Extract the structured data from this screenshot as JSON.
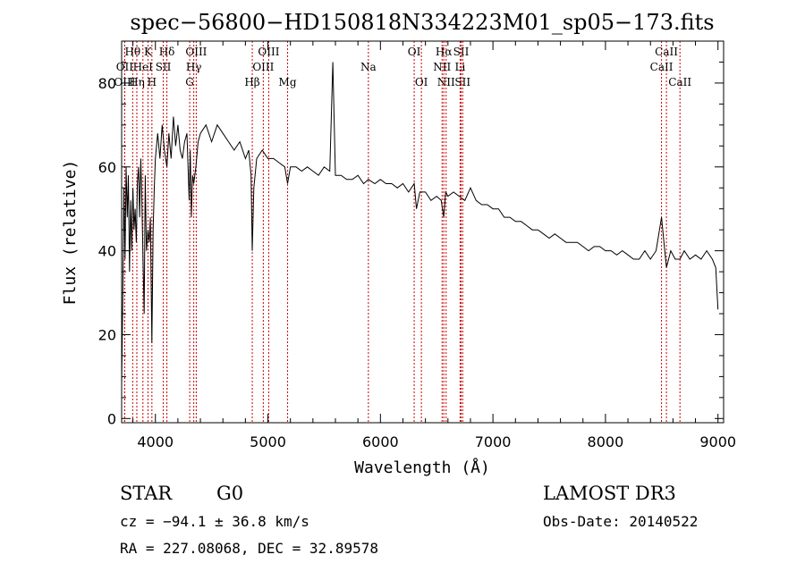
{
  "chart_data": {
    "type": "line",
    "title": "spec−56800−HD150818N334223M01_sp05−173.fits",
    "xlabel": "Wavelength (Å)",
    "ylabel": "Flux (relative)",
    "xlim": [
      3700,
      9050
    ],
    "ylim": [
      -1,
      90
    ],
    "xticks": [
      4000,
      5000,
      6000,
      7000,
      8000,
      9000
    ],
    "xtick_labels": [
      "4000",
      "5000",
      "6000",
      "7000",
      "8000",
      "9000"
    ],
    "yticks": [
      0,
      20,
      40,
      60,
      80
    ],
    "ytick_labels": [
      "0",
      "20",
      "40",
      "60",
      "80"
    ],
    "line_color": "#000000",
    "marker_color": "#cc0000",
    "spectral_lines": [
      {
        "label": "Hθ",
        "wavelength": 3798,
        "row": 1
      },
      {
        "label": "OII",
        "wavelength": 3727,
        "row": 2
      },
      {
        "label": "OIII",
        "wavelength": 3727,
        "row": 3
      },
      {
        "label": "Hη",
        "wavelength": 3835,
        "row": 3
      },
      {
        "label": "HeI",
        "wavelength": 3889,
        "row": 2
      },
      {
        "label": "K",
        "wavelength": 3934,
        "row": 1
      },
      {
        "label": "SII",
        "wavelength": 4070,
        "row": 2
      },
      {
        "label": "H",
        "wavelength": 3969,
        "row": 3
      },
      {
        "label": "Hδ",
        "wavelength": 4102,
        "row": 1
      },
      {
        "label": "OIII",
        "wavelength": 4363,
        "row": 1
      },
      {
        "label": "Hγ",
        "wavelength": 4341,
        "row": 2
      },
      {
        "label": "G",
        "wavelength": 4305,
        "row": 3
      },
      {
        "label": "OIII",
        "wavelength": 5007,
        "row": 1
      },
      {
        "label": "OIII",
        "wavelength": 4959,
        "row": 2
      },
      {
        "label": "Hβ",
        "wavelength": 4861,
        "row": 3
      },
      {
        "label": "Mg",
        "wavelength": 5175,
        "row": 3
      },
      {
        "label": "Na",
        "wavelength": 5893,
        "row": 2
      },
      {
        "label": "OI",
        "wavelength": 6300,
        "row": 1
      },
      {
        "label": "OI",
        "wavelength": 6364,
        "row": 3
      },
      {
        "label": "Hα",
        "wavelength": 6563,
        "row": 1
      },
      {
        "label": "SII",
        "wavelength": 6717,
        "row": 1
      },
      {
        "label": "NII",
        "wavelength": 6548,
        "row": 2
      },
      {
        "label": "Li",
        "wavelength": 6708,
        "row": 2
      },
      {
        "label": "NII",
        "wavelength": 6584,
        "row": 3
      },
      {
        "label": "SII",
        "wavelength": 6731,
        "row": 3
      },
      {
        "label": "CaII",
        "wavelength": 8542,
        "row": 1
      },
      {
        "label": "CaII",
        "wavelength": 8498,
        "row": 2
      },
      {
        "label": "CaII",
        "wavelength": 8662,
        "row": 3
      }
    ],
    "series": [
      {
        "name": "flux",
        "x": [
          3700,
          3710,
          3720,
          3730,
          3740,
          3750,
          3760,
          3770,
          3780,
          3790,
          3800,
          3810,
          3820,
          3830,
          3840,
          3850,
          3860,
          3870,
          3880,
          3890,
          3900,
          3910,
          3920,
          3934,
          3945,
          3955,
          3969,
          3980,
          3990,
          4000,
          4020,
          4040,
          4060,
          4080,
          4102,
          4120,
          4140,
          4160,
          4180,
          4200,
          4220,
          4240,
          4260,
          4280,
          4300,
          4310,
          4320,
          4330,
          4341,
          4360,
          4380,
          4400,
          4450,
          4500,
          4550,
          4600,
          4650,
          4700,
          4750,
          4800,
          4830,
          4850,
          4861,
          4875,
          4900,
          4950,
          5000,
          5050,
          5100,
          5150,
          5175,
          5200,
          5250,
          5300,
          5350,
          5400,
          5450,
          5500,
          5550,
          5577,
          5600,
          5650,
          5700,
          5750,
          5800,
          5850,
          5893,
          5950,
          6000,
          6050,
          6100,
          6150,
          6200,
          6250,
          6300,
          6320,
          6350,
          6400,
          6450,
          6500,
          6540,
          6563,
          6580,
          6600,
          6650,
          6700,
          6750,
          6800,
          6850,
          6900,
          6950,
          7000,
          7050,
          7100,
          7150,
          7200,
          7250,
          7300,
          7350,
          7400,
          7450,
          7500,
          7550,
          7600,
          7650,
          7700,
          7750,
          7800,
          7850,
          7900,
          7950,
          8000,
          8050,
          8100,
          8150,
          8200,
          8250,
          8300,
          8350,
          8400,
          8450,
          8498,
          8520,
          8542,
          8580,
          8620,
          8662,
          8700,
          8750,
          8800,
          8850,
          8900,
          8950,
          8980,
          9000
        ],
        "y": [
          8,
          30,
          55,
          38,
          60,
          48,
          58,
          35,
          52,
          40,
          55,
          45,
          50,
          42,
          56,
          60,
          48,
          62,
          52,
          38,
          25,
          58,
          40,
          45,
          42,
          48,
          18,
          45,
          55,
          62,
          68,
          62,
          70,
          64,
          60,
          68,
          62,
          72,
          65,
          70,
          64,
          62,
          66,
          68,
          52,
          64,
          48,
          58,
          56,
          60,
          66,
          68,
          70,
          66,
          70,
          68,
          66,
          64,
          66,
          62,
          64,
          58,
          40,
          55,
          62,
          64,
          62,
          62,
          61,
          60,
          56,
          60,
          60,
          59,
          60,
          59,
          58,
          60,
          59,
          85,
          58,
          58,
          57,
          57,
          58,
          56,
          57,
          56,
          57,
          56,
          56,
          55,
          56,
          54,
          56,
          50,
          54,
          54,
          52,
          53,
          52,
          48,
          54,
          53,
          54,
          53,
          52,
          55,
          52,
          51,
          51,
          50,
          50,
          48,
          48,
          47,
          47,
          46,
          45,
          45,
          44,
          43,
          44,
          43,
          42,
          42,
          42,
          41,
          40,
          41,
          41,
          40,
          40,
          39,
          40,
          39,
          38,
          38,
          40,
          38,
          40,
          48,
          42,
          36,
          40,
          38,
          38,
          40,
          38,
          39,
          38,
          40,
          38,
          36,
          26
        ]
      }
    ]
  },
  "info": {
    "object_class": "STAR",
    "subclass": "G0",
    "survey": "LAMOST DR3",
    "cz": "cz = −94.1 ± 36.8 km/s",
    "obs_date": "Obs-Date: 20140522",
    "coords": "RA = 227.08068, DEC =  32.89578"
  }
}
